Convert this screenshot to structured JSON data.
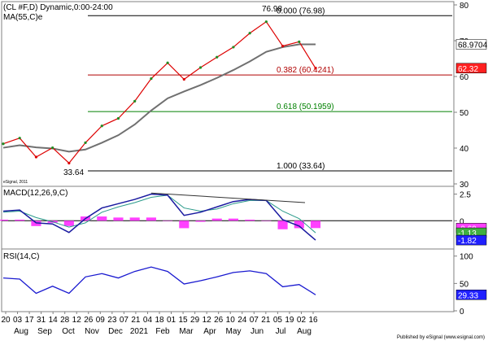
{
  "chart_data": {
    "type": "line",
    "symbol_line": "(CL #F,D) Dynamic,0:00-24:00",
    "ma_label": "MA(55,C)e",
    "watermark": "eSignal, 2011",
    "published_by": "Published by eSignal (www.esignal.com)",
    "x": [
      "2020-08-03",
      "2020-08-24",
      "2020-09-14",
      "2020-10-05",
      "2020-10-26",
      "2020-11-16",
      "2020-12-07",
      "2020-12-28",
      "2021-01-18",
      "2021-02-08",
      "2021-03-01",
      "2021-03-22",
      "2021-04-12",
      "2021-05-03",
      "2021-05-24",
      "2021-06-14",
      "2021-07-06",
      "2021-07-19",
      "2021-08-02",
      "2021-08-12"
    ],
    "price_series": {
      "name": "CL #F",
      "values": [
        41.2,
        42.8,
        37.5,
        40.1,
        35.8,
        41.5,
        46.2,
        48.3,
        53.1,
        59.4,
        63.8,
        59.2,
        62.5,
        65.4,
        68.2,
        72.1,
        75.3,
        68.5,
        69.7,
        62.3
      ]
    },
    "ma_series": {
      "name": "MA(55,C)e",
      "values": [
        40.1,
        40.8,
        40.2,
        39.9,
        39.0,
        39.6,
        41.5,
        43.6,
        46.6,
        50.5,
        53.9,
        55.8,
        57.6,
        59.6,
        61.8,
        64.2,
        66.9,
        68.2,
        68.97,
        68.97
      ]
    },
    "macd_series": {
      "name": "MACD(12,26,9,C)",
      "values": [
        0.9,
        1.0,
        -0.2,
        -0.3,
        -1.1,
        0.2,
        1.2,
        1.6,
        2.0,
        2.5,
        2.4,
        0.5,
        0.8,
        1.3,
        1.8,
        2.0,
        1.9,
        0.1,
        -0.5,
        -1.82
      ]
    },
    "macd_signal": {
      "values": [
        0.8,
        0.9,
        0.3,
        -0.1,
        -0.6,
        -0.2,
        0.8,
        1.3,
        1.7,
        2.2,
        2.4,
        1.2,
        0.9,
        1.1,
        1.6,
        1.9,
        1.9,
        0.9,
        0.2,
        -1.13
      ]
    },
    "macd_hist": [
      0.1,
      0.1,
      -0.5,
      -0.2,
      -0.5,
      0.4,
      0.4,
      0.3,
      0.3,
      0.3,
      0.0,
      -0.7,
      -0.1,
      0.2,
      0.2,
      0.1,
      0.0,
      -0.8,
      -0.7,
      -0.69
    ],
    "rsi_series": {
      "name": "RSI(14,C)",
      "values": [
        60,
        58,
        32,
        45,
        32,
        62,
        68,
        60,
        72,
        80,
        72,
        49,
        55,
        62,
        70,
        73,
        68,
        44,
        48,
        29.33
      ]
    },
    "price_axis": {
      "ylim": [
        30,
        80
      ],
      "ticks": [
        "80",
        "70",
        "60",
        "50",
        "40",
        "30"
      ]
    },
    "macd_axis": {
      "ylim": [
        -2.5,
        3.0
      ],
      "ticks": [
        "2.5",
        "0"
      ]
    },
    "rsi_axis": {
      "ylim": [
        0,
        110
      ],
      "ticks": [
        "100",
        "50",
        "0"
      ]
    },
    "fib_levels": [
      {
        "value": 76.98,
        "label": "0.000 (76.98)",
        "color": "#000000"
      },
      {
        "value": 60.4241,
        "label": "0.382 (60.4241)",
        "color": "#b00000"
      },
      {
        "value": 50.1959,
        "label": "0.618 (50.1959)",
        "color": "#008000"
      },
      {
        "value": 33.64,
        "label": "1.000 (33.64)",
        "color": "#000000"
      }
    ],
    "annotations": {
      "high": "76.98",
      "low": "33.64"
    },
    "value_tags": {
      "ma": {
        "text": "68.9704",
        "value": 68.9704,
        "bg": "#ffffff",
        "fg": "#000000"
      },
      "price": {
        "text": "62.32",
        "value": 62.32,
        "bg": "#ff2020",
        "fg": "#ffffff"
      },
      "macd_hist": {
        "text": "-0.69",
        "value": -0.69,
        "bg": "#ff40ff",
        "fg": "#ffffff"
      },
      "macd_signal": {
        "text": "-1.13",
        "value": -1.13,
        "bg": "#40b040",
        "fg": "#ffffff"
      },
      "macd": {
        "text": "-1.82",
        "value": -1.82,
        "bg": "#2020ff",
        "fg": "#ffffff"
      },
      "rsi": {
        "text": "29.33",
        "value": 29.33,
        "bg": "#2020ff",
        "fg": "#ffffff"
      }
    },
    "x_day_labels": [
      "20",
      "03",
      "17",
      "31",
      "14",
      "28",
      "12",
      "26",
      "09",
      "23",
      "07",
      "21",
      "04",
      "18",
      "01",
      "15",
      "29",
      "12",
      "26",
      "10",
      "24",
      "07",
      "21",
      "05",
      "19",
      "02",
      "16"
    ],
    "x_month_labels": [
      "Aug",
      "Sep",
      "Oct",
      "Nov",
      "Dec",
      "2021",
      "Feb",
      "Mar",
      "Apr",
      "May",
      "Jun",
      "Jul",
      "Aug"
    ],
    "colors": {
      "price_up": "#228b22",
      "price_down": "#dd0000",
      "ma": "#707070",
      "macd_line": "#1a1aa0",
      "signal_line": "#2a9a8a",
      "hist": "#ff40ff",
      "rsi": "#1a1ad0"
    },
    "grid": false
  }
}
